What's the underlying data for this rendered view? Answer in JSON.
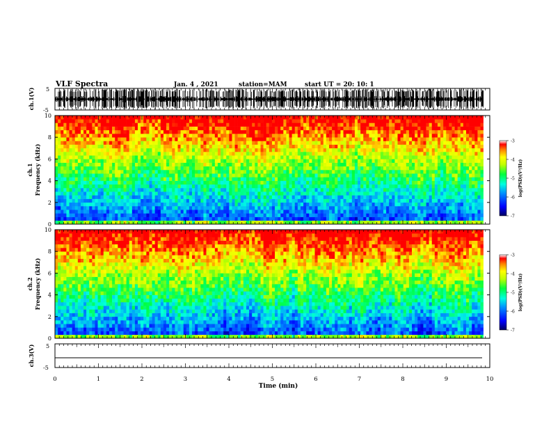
{
  "header": {
    "title": "VLF Spectra",
    "date": "Jan. 4 , 2021",
    "station": "station=MAM",
    "start": "start UT =  20: 10: 1"
  },
  "chart_data": [
    {
      "type": "line",
      "name": "waveform-ch1",
      "ylabel": "ch.1(V)",
      "ylim": [
        -5,
        5
      ],
      "y_ticks": [
        "5",
        "-5"
      ],
      "xlim": [
        0,
        10
      ],
      "description_series": [
        {
          "values_range": [
            -5,
            5
          ]
        }
      ]
    },
    {
      "type": "heatmap",
      "name": "spectrogram-ch1",
      "ylabel": "ch.1\nFrequency (kHz)",
      "ylim": [
        0,
        10
      ],
      "y_ticks": [
        "0",
        "2",
        "4",
        "6",
        "8",
        "10"
      ],
      "xlim": [
        0,
        9.85
      ],
      "colorbar": {
        "label": "log(PSD)(V²/Hz)",
        "range": [
          -7,
          -3
        ],
        "ticks": [
          "-3",
          "-4",
          "-5",
          "-6",
          "-7"
        ]
      }
    },
    {
      "type": "heatmap",
      "name": "spectrogram-ch2",
      "ylabel": "ch.2\nFrequency (kHz)",
      "ylim": [
        0,
        10
      ],
      "y_ticks": [
        "0",
        "2",
        "4",
        "6",
        "8",
        "10"
      ],
      "xlim": [
        0,
        9.85
      ],
      "colorbar": {
        "label": "log(PSD)(V²/Hz)",
        "range": [
          -7,
          -3
        ],
        "ticks": [
          "-3",
          "-4",
          "-5",
          "-6",
          "-7"
        ]
      }
    },
    {
      "type": "line",
      "name": "waveform-ch3",
      "ylabel": "ch.3(V)",
      "ylim": [
        -5,
        5
      ],
      "y_ticks": [
        "5",
        "-5"
      ],
      "series": [
        {
          "x": [
            0,
            9.85
          ],
          "y": [
            -1,
            -1
          ]
        }
      ]
    }
  ],
  "x_axis": {
    "label": "Time (min)",
    "ticks": [
      "0",
      "1",
      "2",
      "3",
      "4",
      "5",
      "6",
      "7",
      "8",
      "9",
      "10"
    ]
  },
  "colors": {
    "waveform": "#000000",
    "colormap": [
      "#00008b",
      "#0000ff",
      "#0080ff",
      "#00e0ff",
      "#00ff80",
      "#80ff00",
      "#ffff00",
      "#ffa000",
      "#ff0000"
    ]
  }
}
